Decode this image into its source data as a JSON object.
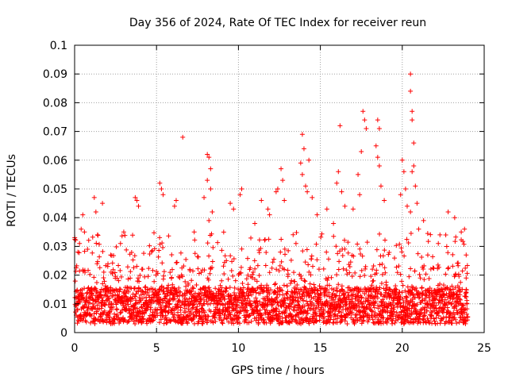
{
  "chart_data": {
    "type": "scatter",
    "title": "Day 356 of 2024, Rate Of TEC Index for receiver reun",
    "xlabel": "GPS time / hours",
    "ylabel": "ROTI / TECUs",
    "xlim": [
      0,
      25
    ],
    "ylim": [
      0,
      0.1
    ],
    "x_ticks": [
      0,
      5,
      10,
      15,
      20,
      25
    ],
    "x_tick_labels": [
      "0",
      "5",
      "10",
      "15",
      "20",
      "25"
    ],
    "y_ticks": [
      0,
      0.01,
      0.02,
      0.03,
      0.04,
      0.05,
      0.06,
      0.07,
      0.08,
      0.09,
      0.1
    ],
    "y_tick_labels": [
      "0",
      "0.01",
      "0.02",
      "0.03",
      "0.04",
      "0.05",
      "0.06",
      "0.07",
      "0.08",
      "0.09",
      "0.1"
    ],
    "grid": true,
    "marker": "+",
    "series": [
      {
        "name": "ROTI",
        "color": "#ff0000",
        "data_range_hours": [
          0,
          24
        ],
        "typical_range": [
          0.003,
          0.02
        ],
        "points": [
          [
            0.1,
            0.012
          ],
          [
            0.2,
            0.028
          ],
          [
            0.3,
            0.031
          ],
          [
            0.4,
            0.036
          ],
          [
            0.5,
            0.041
          ],
          [
            0.6,
            0.035
          ],
          [
            1.2,
            0.047
          ],
          [
            1.3,
            0.042
          ],
          [
            1.7,
            0.045
          ],
          [
            1.4,
            0.034
          ],
          [
            2.2,
            0.027
          ],
          [
            2.8,
            0.031
          ],
          [
            3.0,
            0.035
          ],
          [
            3.7,
            0.047
          ],
          [
            3.8,
            0.046
          ],
          [
            3.9,
            0.044
          ],
          [
            5.2,
            0.052
          ],
          [
            5.3,
            0.05
          ],
          [
            5.4,
            0.048
          ],
          [
            6.1,
            0.044
          ],
          [
            6.2,
            0.046
          ],
          [
            6.6,
            0.068
          ],
          [
            7.3,
            0.035
          ],
          [
            7.9,
            0.047
          ],
          [
            8.1,
            0.062
          ],
          [
            8.2,
            0.061
          ],
          [
            8.3,
            0.057
          ],
          [
            8.1,
            0.053
          ],
          [
            8.3,
            0.05
          ],
          [
            8.4,
            0.042
          ],
          [
            8.2,
            0.039
          ],
          [
            9.5,
            0.045
          ],
          [
            9.7,
            0.043
          ],
          [
            10.2,
            0.05
          ],
          [
            10.1,
            0.048
          ],
          [
            11.0,
            0.038
          ],
          [
            11.4,
            0.046
          ],
          [
            11.8,
            0.043
          ],
          [
            11.9,
            0.041
          ],
          [
            12.3,
            0.049
          ],
          [
            12.4,
            0.05
          ],
          [
            12.6,
            0.057
          ],
          [
            12.7,
            0.053
          ],
          [
            12.8,
            0.046
          ],
          [
            13.9,
            0.069
          ],
          [
            14.0,
            0.064
          ],
          [
            13.8,
            0.059
          ],
          [
            13.9,
            0.055
          ],
          [
            14.1,
            0.051
          ],
          [
            14.2,
            0.049
          ],
          [
            14.3,
            0.06
          ],
          [
            14.5,
            0.047
          ],
          [
            14.8,
            0.041
          ],
          [
            15.4,
            0.043
          ],
          [
            15.8,
            0.038
          ],
          [
            16.2,
            0.072
          ],
          [
            16.1,
            0.056
          ],
          [
            16.0,
            0.052
          ],
          [
            16.3,
            0.049
          ],
          [
            16.5,
            0.044
          ],
          [
            17.0,
            0.043
          ],
          [
            17.6,
            0.077
          ],
          [
            17.7,
            0.074
          ],
          [
            17.8,
            0.071
          ],
          [
            17.5,
            0.063
          ],
          [
            17.3,
            0.055
          ],
          [
            17.4,
            0.048
          ],
          [
            18.5,
            0.074
          ],
          [
            18.6,
            0.071
          ],
          [
            18.4,
            0.065
          ],
          [
            18.5,
            0.061
          ],
          [
            18.6,
            0.058
          ],
          [
            18.7,
            0.051
          ],
          [
            18.9,
            0.046
          ],
          [
            19.9,
            0.048
          ],
          [
            20.0,
            0.06
          ],
          [
            20.1,
            0.056
          ],
          [
            20.2,
            0.05
          ],
          [
            20.3,
            0.044
          ],
          [
            20.5,
            0.09
          ],
          [
            20.5,
            0.084
          ],
          [
            20.6,
            0.077
          ],
          [
            20.6,
            0.074
          ],
          [
            20.7,
            0.066
          ],
          [
            20.7,
            0.058
          ],
          [
            20.6,
            0.056
          ],
          [
            20.8,
            0.051
          ],
          [
            20.9,
            0.045
          ],
          [
            20.5,
            0.042
          ],
          [
            21.0,
            0.036
          ],
          [
            21.3,
            0.039
          ],
          [
            22.2,
            0.031
          ],
          [
            22.3,
            0.034
          ],
          [
            22.8,
            0.042
          ],
          [
            23.2,
            0.04
          ],
          [
            23.6,
            0.035
          ],
          [
            23.8,
            0.036
          ],
          [
            23.9,
            0.027
          ],
          [
            23.9,
            0.019
          ],
          [
            23.95,
            0.01
          ],
          [
            23.9,
            0.015
          ]
        ]
      }
    ]
  }
}
